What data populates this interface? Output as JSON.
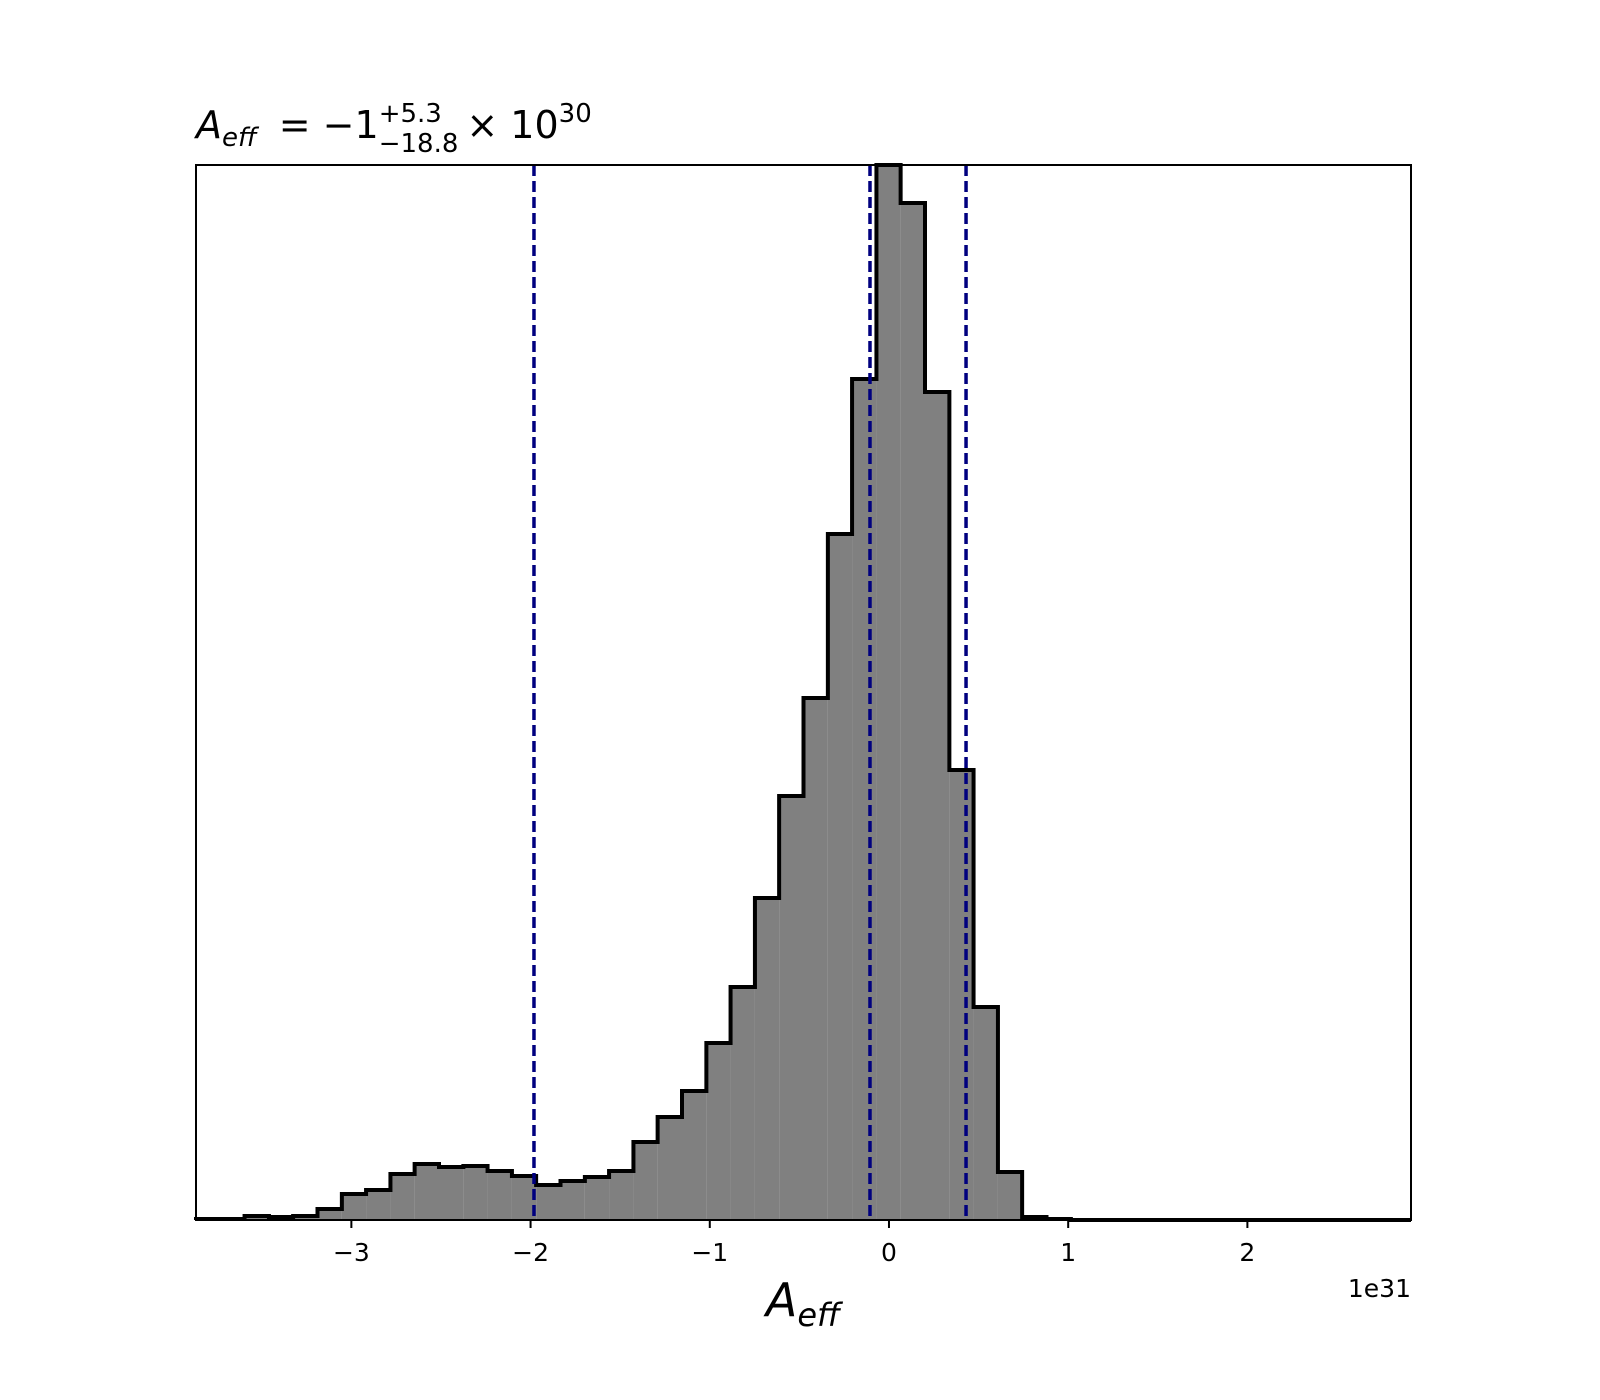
{
  "chart_data": {
    "type": "histogram",
    "title": {
      "symbol": "A",
      "symbol_sub": "eff",
      "eq": "= −1",
      "plus": "+5.3",
      "minus": "−18.8",
      "times": "× 10",
      "exp": "30"
    },
    "xlabel": {
      "symbol": "A",
      "sub": "eff"
    },
    "x_offset_label": "1e31",
    "bins": [
      -3.867,
      -3.731,
      -3.596,
      -3.46,
      -3.325,
      -3.189,
      -3.053,
      -2.918,
      -2.782,
      -2.647,
      -2.511,
      -2.375,
      -2.24,
      -2.104,
      -1.969,
      -1.833,
      -1.697,
      -1.562,
      -1.426,
      -1.291,
      -1.155,
      -1.019,
      -0.884,
      -0.748,
      -0.613,
      -0.477,
      -0.341,
      -0.206,
      -0.07,
      0.065,
      0.201,
      0.337,
      0.472,
      0.608,
      0.743,
      0.879,
      1.015,
      1.15,
      1.286,
      1.421,
      1.557,
      1.693,
      1.828,
      1.964,
      2.099,
      2.235,
      2.371,
      2.506,
      2.642,
      2.777,
      2.913
    ],
    "values": [
      1,
      1,
      4,
      3,
      4,
      11,
      26,
      30,
      46,
      56,
      53,
      54,
      49,
      44,
      35,
      39,
      43,
      49,
      78,
      103,
      129,
      177,
      233,
      322,
      424,
      522,
      686,
      841,
      1055,
      1017,
      828,
      450,
      213,
      48,
      3,
      1,
      0,
      0,
      0,
      0,
      0,
      0,
      0,
      0,
      0,
      0,
      0,
      0,
      0,
      0
    ],
    "color": "#808080",
    "edge_color": "#000000",
    "vlines": [
      -1.981,
      -0.106,
      0.43
    ],
    "vline_color": "#00007f",
    "xlim": [
      -3.867,
      2.913
    ],
    "ylim": [
      0,
      1055
    ],
    "xticks": [
      {
        "value": -3,
        "label": "−3"
      },
      {
        "value": -2,
        "label": "−2"
      },
      {
        "value": -1,
        "label": "−1"
      },
      0,
      1,
      2
    ]
  }
}
